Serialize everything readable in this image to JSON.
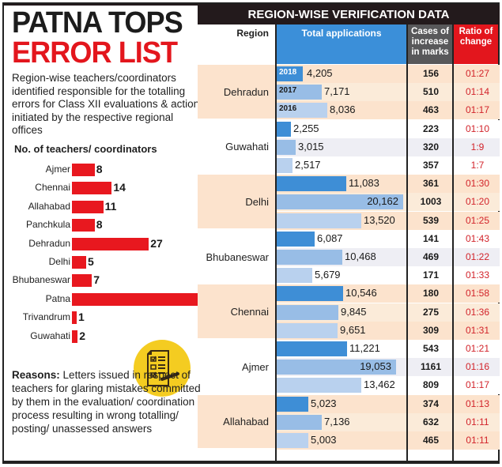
{
  "headline": {
    "line1": "PATNA TOPS",
    "line2": "ERROR LIST"
  },
  "subtitle": "Region-wise teachers/coordinators identified responsible for the totalling errors for Class XII evaluations & action initiated by the respective regional offices",
  "reasons": {
    "label": "Reasons:",
    "text": "Letters issued in respect of teachers for glaring mistakes committed by them in the evaluation/ coordination process resulting in wrong totalling/ posting/ unassessed answers"
  },
  "icon": "checklist-icon",
  "colors": {
    "accent_red": "#e3161d",
    "bar_red": "#e8181f",
    "dark": "#231a1c",
    "blue_2018": "#3e8ed6",
    "blue_2017": "#98bde6",
    "blue_2016": "#b9d1ee",
    "tint": "#fce3cd",
    "yellow": "#f4cc21"
  },
  "chart_data": [
    {
      "type": "bar",
      "orientation": "horizontal",
      "title": "No. of teachers/ coordinators",
      "categories": [
        "Ajmer",
        "Chennai",
        "Allahabad",
        "Panchkula",
        "Dehradun",
        "Delhi",
        "Bhubaneswar",
        "Patna",
        "Trivandrum",
        "Guwahati"
      ],
      "values": [
        8,
        14,
        11,
        8,
        27,
        5,
        7,
        45,
        1,
        2
      ],
      "highlight": "Patna"
    },
    {
      "type": "table",
      "title": "REGION-WISE VERIFICATION DATA",
      "columns": [
        "Region",
        "Total applications",
        "Cases of increase in marks",
        "Ratio of change"
      ],
      "years": [
        "2018",
        "2017",
        "2016"
      ],
      "rows": [
        {
          "region": "Dehradun",
          "entries": [
            {
              "year": "2018",
              "applications": 4205,
              "applications_label": "4,205",
              "cases": "156",
              "ratio": "01:27"
            },
            {
              "year": "2017",
              "applications": 7171,
              "applications_label": "7,171",
              "cases": "510",
              "ratio": "01:14"
            },
            {
              "year": "2016",
              "applications": 8036,
              "applications_label": "8,036",
              "cases": "463",
              "ratio": "01:17"
            }
          ]
        },
        {
          "region": "Guwahati",
          "entries": [
            {
              "year": "2018",
              "applications": 2255,
              "applications_label": "2,255",
              "cases": "223",
              "ratio": "01:10"
            },
            {
              "year": "2017",
              "applications": 3015,
              "applications_label": "3,015",
              "cases": "320",
              "ratio": "1:9"
            },
            {
              "year": "2016",
              "applications": 2517,
              "applications_label": "2,517",
              "cases": "357",
              "ratio": "1:7"
            }
          ]
        },
        {
          "region": "Delhi",
          "entries": [
            {
              "year": "2018",
              "applications": 11083,
              "applications_label": "11,083",
              "cases": "361",
              "ratio": "01:30"
            },
            {
              "year": "2017",
              "applications": 20162,
              "applications_label": "20,162",
              "cases": "1003",
              "ratio": "01:20"
            },
            {
              "year": "2016",
              "applications": 13520,
              "applications_label": "13,520",
              "cases": "539",
              "ratio": "01:25"
            }
          ]
        },
        {
          "region": "Bhubaneswar",
          "entries": [
            {
              "year": "2018",
              "applications": 6087,
              "applications_label": "6,087",
              "cases": "141",
              "ratio": "01:43"
            },
            {
              "year": "2017",
              "applications": 10468,
              "applications_label": "10,468",
              "cases": "469",
              "ratio": "01:22"
            },
            {
              "year": "2016",
              "applications": 5679,
              "applications_label": "5,679",
              "cases": "171",
              "ratio": "01:33"
            }
          ]
        },
        {
          "region": "Chennai",
          "entries": [
            {
              "year": "2018",
              "applications": 10546,
              "applications_label": "10,546",
              "cases": "180",
              "ratio": "01:58"
            },
            {
              "year": "2017",
              "applications": 9845,
              "applications_label": "9,845",
              "cases": "275",
              "ratio": "01:36"
            },
            {
              "year": "2016",
              "applications": 9651,
              "applications_label": "9,651",
              "cases": "309",
              "ratio": "01:31"
            }
          ]
        },
        {
          "region": "Ajmer",
          "entries": [
            {
              "year": "2018",
              "applications": 11221,
              "applications_label": "11,221",
              "cases": "543",
              "ratio": "01:21"
            },
            {
              "year": "2017",
              "applications": 19053,
              "applications_label": "19,053",
              "cases": "1161",
              "ratio": "01:16"
            },
            {
              "year": "2016",
              "applications": 13462,
              "applications_label": "13,462",
              "cases": "809",
              "ratio": "01:17"
            }
          ]
        },
        {
          "region": "Allahabad",
          "entries": [
            {
              "year": "2018",
              "applications": 5023,
              "applications_label": "5,023",
              "cases": "374",
              "ratio": "01:13"
            },
            {
              "year": "2017",
              "applications": 7136,
              "applications_label": "7,136",
              "cases": "632",
              "ratio": "01:11"
            },
            {
              "year": "2016",
              "applications": 5003,
              "applications_label": "5,003",
              "cases": "465",
              "ratio": "01:11"
            }
          ]
        }
      ]
    }
  ]
}
